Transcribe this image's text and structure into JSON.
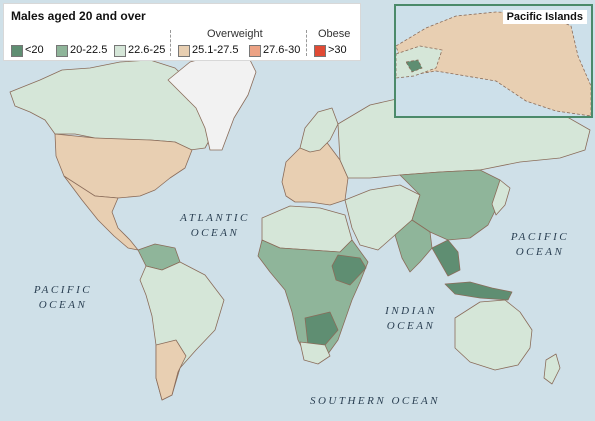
{
  "legend": {
    "title": "Males aged 20 and over",
    "group_overweight": "Overweight",
    "group_obese": "Obese",
    "classes": [
      {
        "label": "<20",
        "color": "#5f8e72"
      },
      {
        "label": "20-22.5",
        "color": "#8fb59a"
      },
      {
        "label": "22.6-25",
        "color": "#d5e6d8"
      },
      {
        "label": "25.1-27.5",
        "color": "#e8cfb2"
      },
      {
        "label": "27.6-30",
        "color": "#eca284"
      },
      {
        "label": ">30",
        "color": "#e04a34"
      }
    ]
  },
  "inset": {
    "title": "Pacific Islands"
  },
  "oceans": {
    "atlantic_1": "ATLANTIC",
    "atlantic_2": "OCEAN",
    "pacific_e_1": "PACIFIC",
    "pacific_e_2": "OCEAN",
    "pacific_w_1": "PACIFIC",
    "pacific_w_2": "OCEAN",
    "indian_1": "INDIAN",
    "indian_2": "OCEAN",
    "southern": "SOUTHERN OCEAN"
  },
  "colors": {
    "ocean": "#cfe0e8",
    "border": "#8a6c5a",
    "greenland": "#f2f2f2"
  }
}
